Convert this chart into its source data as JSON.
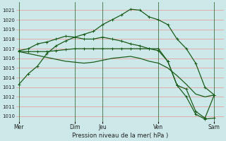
{
  "bg_color": "#cce8e8",
  "grid_color_h": "#e8a0a0",
  "grid_color_v": "#336633",
  "line_color": "#1a5c1a",
  "ylabel": "Pression niveau de la mer( hPa )",
  "ylim": [
    1009.5,
    1021.8
  ],
  "yticks": [
    1010,
    1011,
    1012,
    1013,
    1014,
    1015,
    1016,
    1017,
    1018,
    1019,
    1020,
    1021
  ],
  "xtick_labels": [
    "Mer",
    "Dim",
    "Jeu",
    "Ven",
    "Sam"
  ],
  "xtick_positions": [
    0,
    6,
    9,
    15,
    21
  ],
  "xvline_positions": [
    0,
    6,
    9,
    15,
    21
  ],
  "xlim": [
    -0.3,
    22.0
  ],
  "line1_x": [
    0,
    1,
    2,
    3,
    4,
    5,
    6,
    7,
    8,
    9,
    10,
    11,
    12,
    13,
    14,
    15,
    16,
    17,
    18,
    19,
    20,
    21
  ],
  "line1_y": [
    1013.3,
    1014.4,
    1015.2,
    1016.5,
    1017.3,
    1017.8,
    1018.2,
    1018.5,
    1018.8,
    1019.5,
    1020.0,
    1020.5,
    1021.1,
    1021.0,
    1020.3,
    1020.0,
    1019.5,
    1018.0,
    1017.0,
    1015.5,
    1013.0,
    1012.2
  ],
  "line2_x": [
    0,
    1,
    2,
    3,
    4,
    5,
    6,
    7,
    8,
    9,
    10,
    11,
    12,
    13,
    14,
    15,
    16,
    17,
    18,
    19,
    20,
    21
  ],
  "line2_y": [
    1016.8,
    1017.0,
    1017.5,
    1017.7,
    1018.0,
    1018.3,
    1018.2,
    1018.0,
    1018.0,
    1018.2,
    1018.0,
    1017.8,
    1017.5,
    1017.3,
    1017.0,
    1016.8,
    1015.7,
    1013.2,
    1012.0,
    1010.2,
    1009.7,
    1009.8
  ],
  "line3_x": [
    0,
    1,
    2,
    3,
    4,
    5,
    6,
    7,
    8,
    9,
    10,
    11,
    12,
    13,
    14,
    15,
    16,
    17,
    18,
    19,
    20,
    21
  ],
  "line3_y": [
    1016.7,
    1016.7,
    1016.7,
    1016.7,
    1016.8,
    1016.9,
    1017.0,
    1017.0,
    1017.0,
    1017.0,
    1017.0,
    1017.0,
    1017.0,
    1017.0,
    1017.0,
    1017.0,
    1015.7,
    1013.2,
    1012.8,
    1010.5,
    1009.8,
    1012.2
  ],
  "line4_x": [
    0,
    1,
    2,
    3,
    4,
    5,
    6,
    7,
    8,
    9,
    10,
    11,
    12,
    13,
    14,
    15,
    16,
    17,
    18,
    19,
    20,
    21
  ],
  "line4_y": [
    1016.7,
    1016.5,
    1016.3,
    1016.1,
    1015.9,
    1015.7,
    1015.6,
    1015.5,
    1015.6,
    1015.8,
    1016.0,
    1016.1,
    1016.2,
    1016.0,
    1015.7,
    1015.5,
    1015.0,
    1014.2,
    1013.3,
    1012.3,
    1012.0,
    1012.2
  ]
}
